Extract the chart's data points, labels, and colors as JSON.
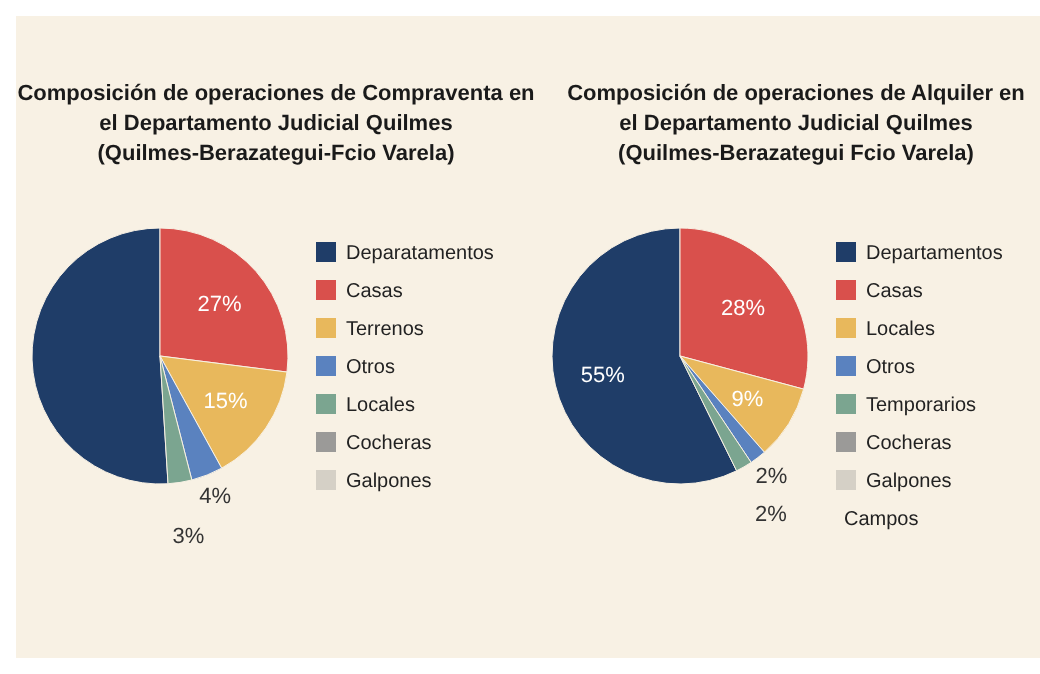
{
  "chart_data": [
    {
      "type": "pie",
      "title": "Composición de operaciones de Compraventa en\nel Departamento Judicial Quilmes\n(Quilmes-Berazategui-Fcio Varela)",
      "categories": [
        "Deparatamentos",
        "Casas",
        "Terrenos",
        "Otros",
        "Locales",
        "Cocheras",
        "Galpones"
      ],
      "values": [
        51,
        27,
        15,
        4,
        3,
        0,
        0
      ],
      "value_labels": [
        null,
        "27%",
        "15%",
        "4%",
        "3%",
        null,
        null
      ],
      "colors": [
        "#1f3d68",
        "#d9504c",
        "#e8b85c",
        "#5a82bf",
        "#7ba590",
        "#9b9a98",
        "#d5d0c6"
      ],
      "legend": "right"
    },
    {
      "type": "pie",
      "title": "Composición de operaciones de Alquiler en\nel Departamento Judicial Quilmes\n(Quilmes-Berazategui Fcio Varela)",
      "categories": [
        "Departamentos",
        "Casas",
        "Locales",
        "Otros",
        "Temporarios",
        "Cocheras",
        "Galpones",
        "Campos"
      ],
      "values": [
        55,
        28,
        9,
        2,
        2,
        0,
        0,
        0
      ],
      "value_labels": [
        "55%",
        "28%",
        "9%",
        "2%",
        "2%",
        null,
        null,
        null
      ],
      "colors": [
        "#1f3d68",
        "#d9504c",
        "#e8b85c",
        "#5a82bf",
        "#7ba590",
        "#9b9a98",
        "#d5d0c6",
        null
      ],
      "legend": "right"
    }
  ]
}
